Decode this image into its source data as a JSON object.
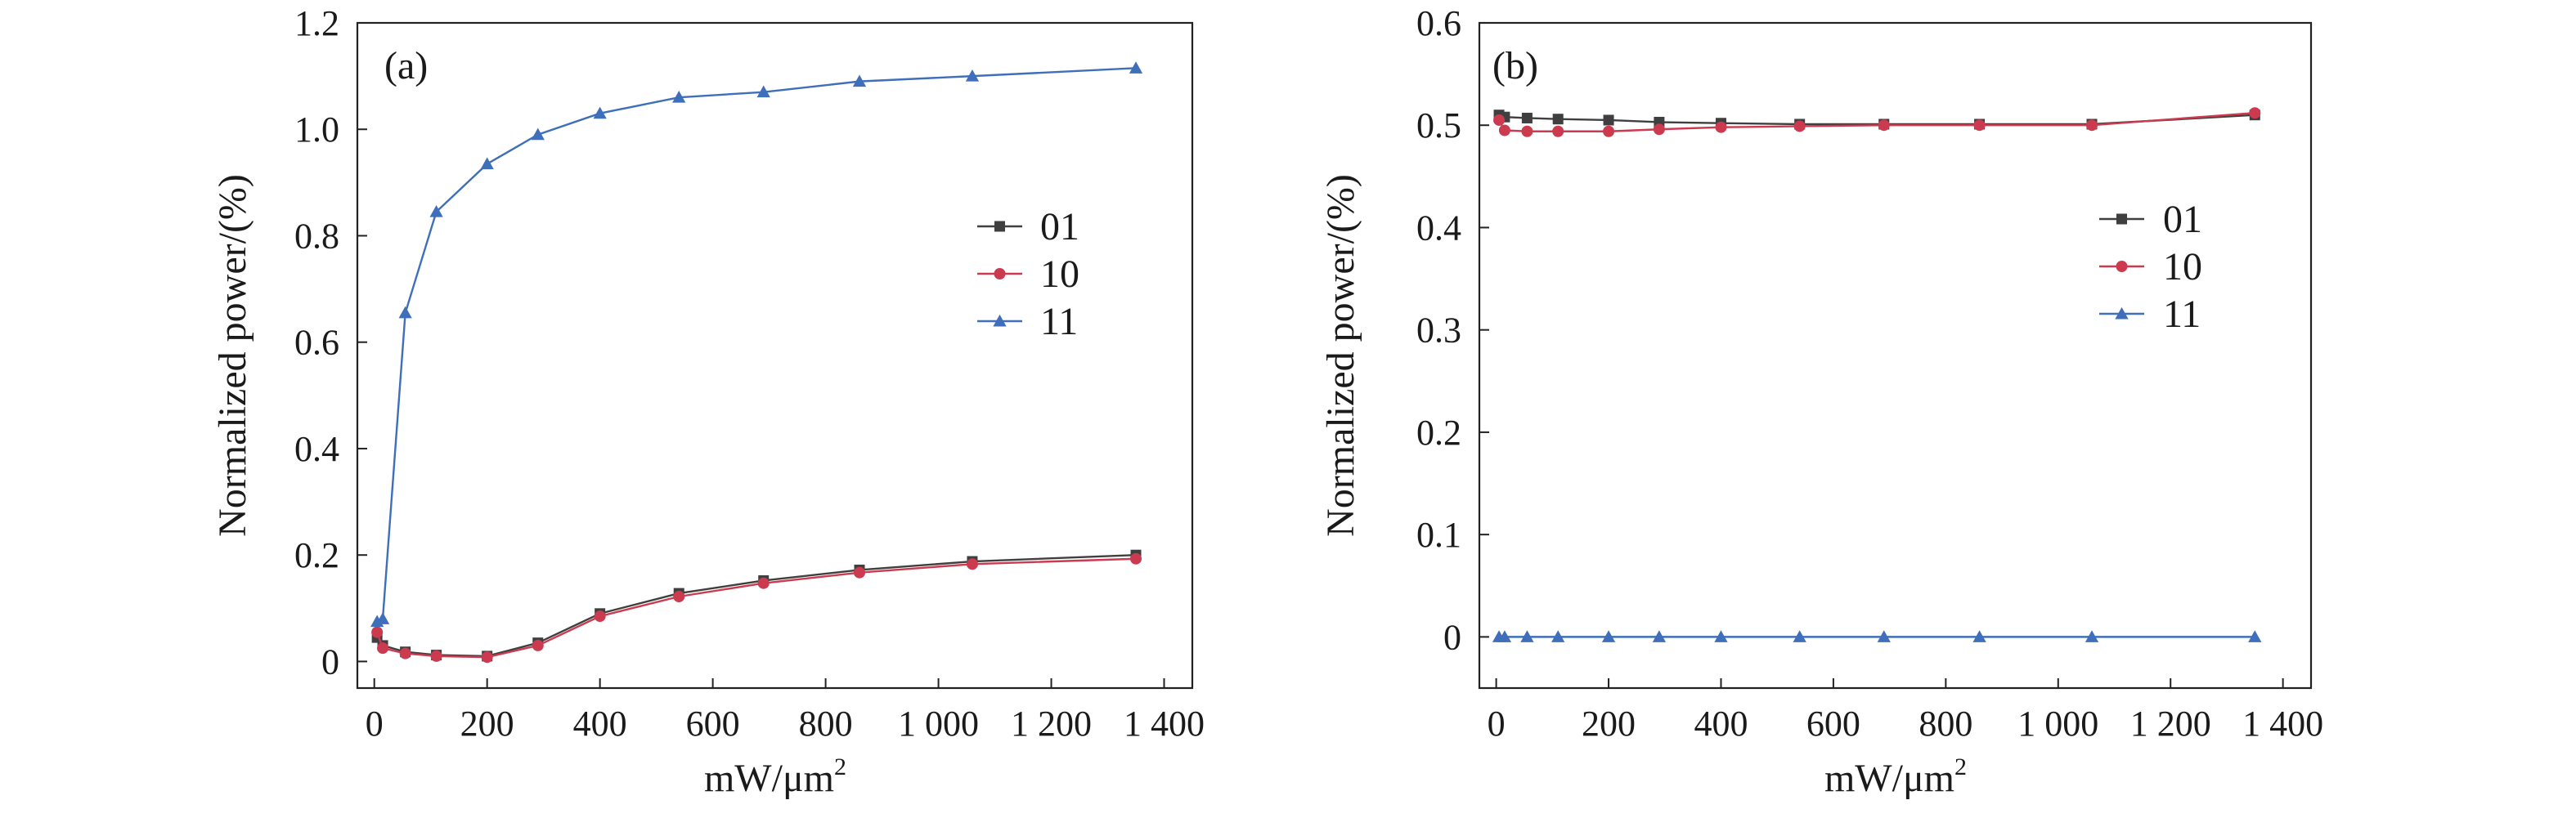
{
  "chart_data": [
    {
      "type": "line",
      "panel_label": "(a)",
      "xlabel": "mW/μm",
      "xlabel_sup": "2",
      "ylabel": "Normalized power/(%)",
      "xlim": [
        -30,
        1450
      ],
      "ylim": [
        -0.05,
        1.2
      ],
      "xticks": [
        0,
        200,
        400,
        600,
        800,
        1000,
        1200,
        1400
      ],
      "xtick_labels": [
        "0",
        "200",
        "400",
        "600",
        "800",
        "1 000",
        "1 200",
        "1 400"
      ],
      "yticks": [
        0,
        0.2,
        0.4,
        0.6,
        0.8,
        1.0,
        1.2
      ],
      "ytick_labels": [
        "0",
        "0.2",
        "0.4",
        "0.6",
        "0.8",
        "1.0",
        "1.2"
      ],
      "legend_position": "right-middle",
      "x": [
        5,
        15,
        55,
        110,
        200,
        290,
        400,
        540,
        690,
        860,
        1060,
        1350
      ],
      "series": [
        {
          "name": "01",
          "color": "#3f3f3f",
          "marker": "square",
          "values": [
            0.045,
            0.03,
            0.018,
            0.012,
            0.01,
            0.035,
            0.09,
            0.128,
            0.152,
            0.172,
            0.188,
            0.2
          ]
        },
        {
          "name": "10",
          "color": "#cc3a50",
          "marker": "circle",
          "values": [
            0.055,
            0.025,
            0.015,
            0.01,
            0.008,
            0.03,
            0.085,
            0.122,
            0.147,
            0.167,
            0.183,
            0.193
          ]
        },
        {
          "name": "11",
          "color": "#3f6fba",
          "marker": "triangle",
          "values": [
            0.075,
            0.08,
            0.655,
            0.845,
            0.935,
            0.99,
            1.03,
            1.06,
            1.07,
            1.09,
            1.1,
            1.115
          ]
        }
      ]
    },
    {
      "type": "line",
      "panel_label": "(b)",
      "xlabel": "mW/μm",
      "xlabel_sup": "2",
      "ylabel": "Normalized power/(%)",
      "xlim": [
        -30,
        1450
      ],
      "ylim": [
        -0.05,
        0.6
      ],
      "xticks": [
        0,
        200,
        400,
        600,
        800,
        1000,
        1200,
        1400
      ],
      "xtick_labels": [
        "0",
        "200",
        "400",
        "600",
        "800",
        "1 000",
        "1 200",
        "1 400"
      ],
      "yticks": [
        0,
        0.1,
        0.2,
        0.3,
        0.4,
        0.5,
        0.6
      ],
      "ytick_labels": [
        "0",
        "0.1",
        "0.2",
        "0.3",
        "0.4",
        "0.5",
        "0.6"
      ],
      "legend_position": "right-middle",
      "x": [
        5,
        15,
        55,
        110,
        200,
        290,
        400,
        540,
        690,
        860,
        1060,
        1350
      ],
      "series": [
        {
          "name": "01",
          "color": "#3f3f3f",
          "marker": "square",
          "values": [
            0.51,
            0.508,
            0.507,
            0.506,
            0.505,
            0.503,
            0.502,
            0.501,
            0.501,
            0.501,
            0.501,
            0.51
          ]
        },
        {
          "name": "10",
          "color": "#cc3a50",
          "marker": "circle",
          "values": [
            0.505,
            0.495,
            0.494,
            0.494,
            0.494,
            0.496,
            0.498,
            0.499,
            0.5,
            0.5,
            0.5,
            0.512
          ]
        },
        {
          "name": "11",
          "color": "#3f6fba",
          "marker": "triangle",
          "values": [
            0,
            0,
            0,
            0,
            0,
            0,
            0,
            0,
            0,
            0,
            0,
            0
          ]
        }
      ]
    }
  ]
}
